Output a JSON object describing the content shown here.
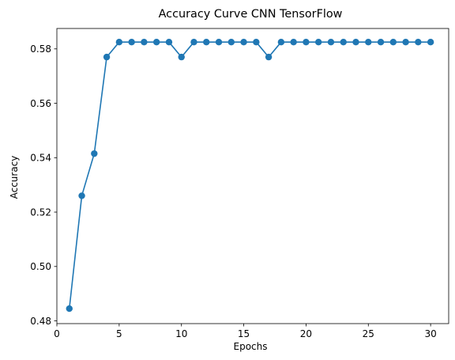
{
  "chart_data": {
    "type": "line",
    "title": "Accuracy Curve CNN TensorFlow",
    "xlabel": "Epochs",
    "ylabel": "Accuracy",
    "xlim": [
      0,
      31.45
    ],
    "ylim": [
      0.479,
      0.5875
    ],
    "xticks": [
      "0",
      "5",
      "10",
      "15",
      "20",
      "25",
      "30"
    ],
    "yticks": [
      "0.48",
      "0.50",
      "0.52",
      "0.54",
      "0.56",
      "0.58"
    ],
    "grid": false,
    "marker": "circle",
    "colors": {
      "line": "#1f77b4"
    },
    "series": [
      {
        "x": [
          1,
          2,
          3,
          4,
          5,
          6,
          7,
          8,
          9,
          10,
          11,
          12,
          13,
          14,
          15,
          16,
          17,
          18,
          19,
          20,
          21,
          22,
          23,
          24,
          25,
          26,
          27,
          28,
          29,
          30
        ],
        "values": [
          0.4845,
          0.526,
          0.5415,
          0.577,
          0.5825,
          0.5825,
          0.5825,
          0.5825,
          0.5825,
          0.577,
          0.5825,
          0.5825,
          0.5825,
          0.5825,
          0.5825,
          0.5825,
          0.577,
          0.5825,
          0.5825,
          0.5825,
          0.5825,
          0.5825,
          0.5825,
          0.5825,
          0.5825,
          0.5825,
          0.5825,
          0.5825,
          0.5825,
          0.5825
        ]
      }
    ]
  }
}
